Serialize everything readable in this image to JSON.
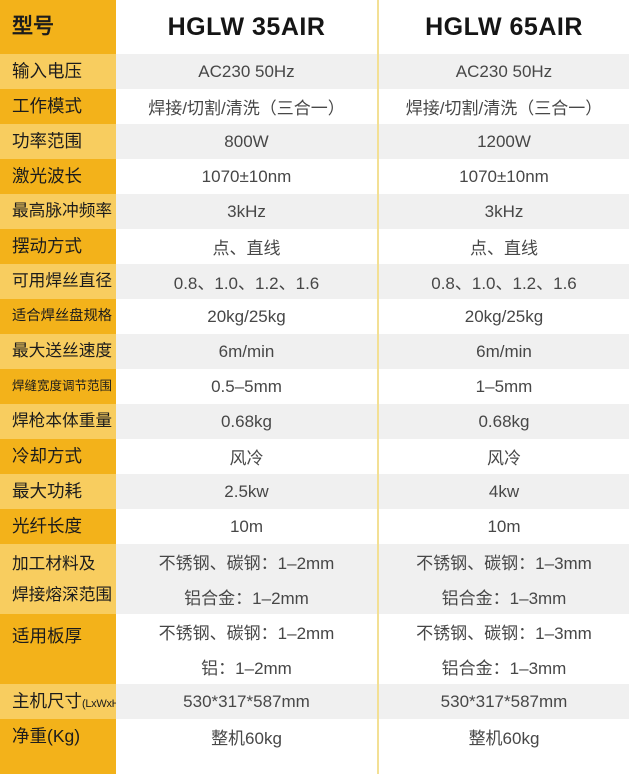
{
  "colors": {
    "label_dark": "#F3B21A",
    "label_light": "#F8CD5F",
    "row_gray": "#F0F0F0",
    "row_white": "#FFFFFF",
    "divider": "#F3E095",
    "label_text": "#1C1C1C",
    "data_text": "#474747",
    "header_text": "#151515"
  },
  "table": {
    "header": {
      "label": "型号",
      "columns": [
        "HGLW 35AIR",
        "HGLW 65AIR"
      ]
    },
    "rows": [
      {
        "label": "输入电压",
        "values": [
          "AC230 50Hz",
          "AC230 50Hz"
        ]
      },
      {
        "label": "工作模式",
        "values": [
          "焊接/切割/清洗（三合一）",
          "焊接/切割/清洗（三合一）"
        ]
      },
      {
        "label": "功率范围",
        "values": [
          "800W",
          "1200W"
        ]
      },
      {
        "label": "激光波长",
        "values": [
          "1070±10nm",
          "1070±10nm"
        ]
      },
      {
        "label": "最高脉冲频率",
        "values": [
          "3kHz",
          "3kHz"
        ]
      },
      {
        "label": "摆动方式",
        "values": [
          "点、直线",
          "点、直线"
        ]
      },
      {
        "label": "可用焊丝直径",
        "values": [
          "0.8、1.0、1.2、1.6",
          "0.8、1.0、1.2、1.6"
        ]
      },
      {
        "label": "适合焊丝盘规格",
        "values": [
          "20kg/25kg",
          "20kg/25kg"
        ]
      },
      {
        "label": "最大送丝速度",
        "values": [
          "6m/min",
          "6m/min"
        ]
      },
      {
        "label": "焊缝宽度调节范围",
        "values": [
          "0.5–5mm",
          "1–5mm"
        ]
      },
      {
        "label": "焊枪本体重量",
        "values": [
          "0.68kg",
          "0.68kg"
        ]
      },
      {
        "label": "冷却方式",
        "values": [
          "风冷",
          "风冷"
        ]
      },
      {
        "label": "最大功耗",
        "values": [
          "2.5kw",
          "4kw"
        ]
      },
      {
        "label": "光纤长度",
        "values": [
          "10m",
          "10m"
        ]
      },
      {
        "label_lines": [
          "加工材料及",
          "焊接熔深范围"
        ],
        "values": [
          [
            "不锈钢、碳钢：1–2mm",
            "铝合金：1–2mm"
          ],
          [
            "不锈钢、碳钢：1–3mm",
            "铝合金：1–3mm"
          ]
        ]
      },
      {
        "label": "适用板厚",
        "values": [
          [
            "不锈钢、碳钢：1–2mm",
            "铝：1–2mm"
          ],
          [
            "不锈钢、碳钢：1–3mm",
            "铝合金：1–3mm"
          ]
        ]
      },
      {
        "label": "主机尺寸",
        "label_suffix": "(LxWxH)",
        "values": [
          "530*317*587mm",
          "530*317*587mm"
        ]
      },
      {
        "label": "净重(Kg)",
        "values": [
          "整机60kg",
          "整机60kg"
        ]
      }
    ]
  }
}
